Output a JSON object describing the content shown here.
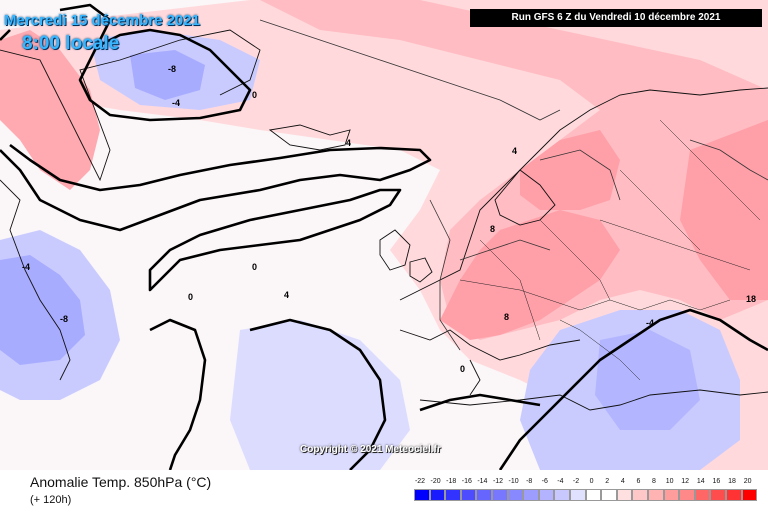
{
  "header": {
    "date": "Mercredi 15 décembre 2021",
    "local_time": "8:00 locale",
    "run": "Run GFS 6 Z du Vendredi 10 décembre 2021"
  },
  "watermark": "Copyright © 2021 Meteociel.fr",
  "footer": {
    "variable": "Anomalie Temp. 850hPa (°C)",
    "lead": "(+ 120h)"
  },
  "legend": {
    "ticks": [
      "-22",
      "-20",
      "-18",
      "-16",
      "-14",
      "-12",
      "-10",
      "-8",
      "-6",
      "-4",
      "-2",
      "0",
      "2",
      "4",
      "6",
      "8",
      "10",
      "12",
      "14",
      "16",
      "18",
      "20"
    ],
    "colors": [
      "#0000ff",
      "#1a1aff",
      "#3333ff",
      "#4d4dff",
      "#6666ff",
      "#7777ff",
      "#8888ff",
      "#9d9dff",
      "#b3b3ff",
      "#c8c8ff",
      "#e0e0ff",
      "#ffffff",
      "#ffffff",
      "#ffe0e0",
      "#ffc8c8",
      "#ffb3b3",
      "#ff9d9d",
      "#ff8888",
      "#ff6666",
      "#ff4d4d",
      "#ff3333",
      "#ff0000"
    ]
  },
  "contour_labels": [
    "-8",
    "-4",
    "0",
    "4",
    "8",
    "-8",
    "-4",
    "0",
    "4",
    "8",
    "18",
    "0",
    "-4",
    "4",
    "0"
  ]
}
